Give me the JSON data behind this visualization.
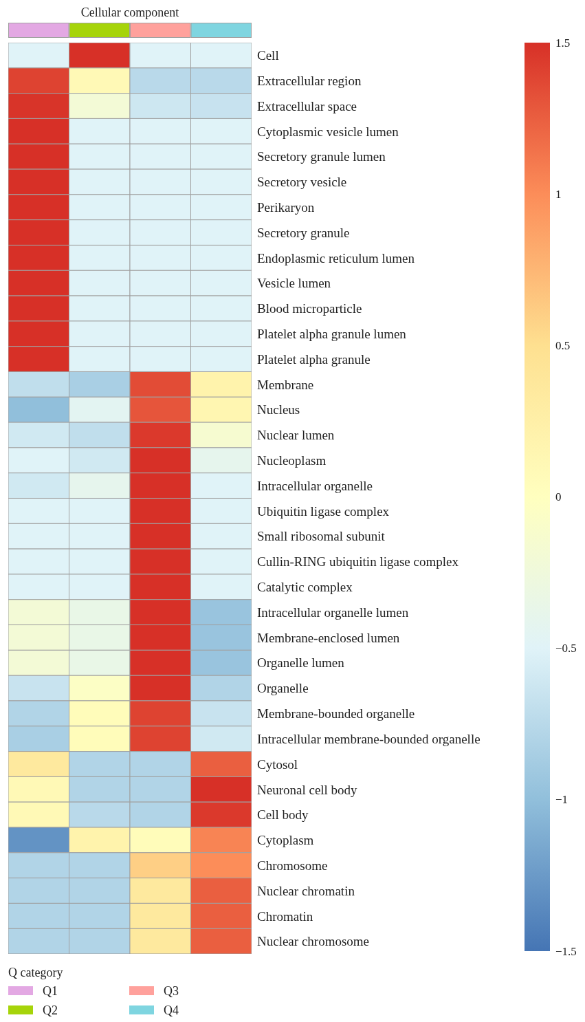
{
  "chart_data": {
    "type": "heatmap",
    "title": "Cellular component",
    "legend_title": "Q category",
    "categories": [
      null,
      null,
      null,
      null
    ],
    "annotations": [
      "Q1",
      "Q2",
      "Q3",
      "Q4"
    ],
    "colors": [
      "#e3a8e3",
      "#a6d40a",
      "#ffa19c",
      "#7fd5e0"
    ],
    "y_categories": [
      "Cell",
      "Extracellular region",
      "Extracellular space",
      "Cytoplasmic vesicle lumen",
      "Secretory granule lumen",
      "Secretory vesicle",
      "Perikaryon",
      "Secretory granule",
      "Endoplasmic reticulum lumen",
      "Vesicle lumen",
      "Blood microparticle",
      "Platelet alpha granule lumen",
      "Platelet alpha granule",
      "Membrane",
      "Nucleus",
      "Nuclear lumen",
      "Nucleoplasm",
      "Intracellular organelle",
      "Ubiquitin ligase complex",
      "Small ribosomal subunit",
      "Cullin-RING ubiquitin ligase complex",
      "Catalytic complex",
      "Intracellular organelle lumen",
      "Membrane-enclosed lumen",
      "Organelle lumen",
      "Organelle",
      "Membrane-bounded organelle",
      "Intracellular membrane-bounded organelle",
      "Cytosol",
      "Neuronal cell body",
      "Cell body",
      "Cytoplasm",
      "Chromosome",
      "Nuclear chromatin",
      "Chromatin",
      "Nuclear chromosome"
    ],
    "cells": [
      [
        -0.5,
        1.5,
        -0.5,
        -0.5
      ],
      [
        1.4,
        0.1,
        -0.75,
        -0.75
      ],
      [
        1.48,
        -0.2,
        -0.62,
        -0.66
      ],
      [
        1.5,
        -0.5,
        -0.5,
        -0.5
      ],
      [
        1.5,
        -0.5,
        -0.5,
        -0.5
      ],
      [
        1.5,
        -0.5,
        -0.5,
        -0.5
      ],
      [
        1.5,
        -0.5,
        -0.5,
        -0.5
      ],
      [
        1.5,
        -0.5,
        -0.5,
        -0.5
      ],
      [
        1.5,
        -0.5,
        -0.5,
        -0.5
      ],
      [
        1.5,
        -0.5,
        -0.5,
        -0.5
      ],
      [
        1.5,
        -0.5,
        -0.5,
        -0.5
      ],
      [
        1.5,
        -0.5,
        -0.5,
        -0.5
      ],
      [
        1.5,
        -0.5,
        -0.5,
        -0.5
      ],
      [
        -0.7,
        -0.85,
        1.35,
        0.2
      ],
      [
        -1.0,
        -0.45,
        1.3,
        0.15
      ],
      [
        -0.6,
        -0.7,
        1.45,
        -0.15
      ],
      [
        -0.5,
        -0.6,
        1.5,
        -0.4
      ],
      [
        -0.6,
        -0.4,
        1.5,
        -0.5
      ],
      [
        -0.5,
        -0.5,
        1.5,
        -0.5
      ],
      [
        -0.5,
        -0.5,
        1.5,
        -0.5
      ],
      [
        -0.5,
        -0.5,
        1.5,
        -0.5
      ],
      [
        -0.5,
        -0.5,
        1.5,
        -0.5
      ],
      [
        -0.2,
        -0.35,
        1.5,
        -0.95
      ],
      [
        -0.2,
        -0.35,
        1.5,
        -0.95
      ],
      [
        -0.2,
        -0.35,
        1.5,
        -0.95
      ],
      [
        -0.65,
        -0.05,
        1.5,
        -0.8
      ],
      [
        -0.8,
        0.05,
        1.4,
        -0.65
      ],
      [
        -0.85,
        0.05,
        1.4,
        -0.6
      ],
      [
        0.35,
        -0.8,
        -0.8,
        1.25
      ],
      [
        0.1,
        -0.8,
        -0.8,
        1.5
      ],
      [
        0.1,
        -0.75,
        -0.8,
        1.45
      ],
      [
        -1.3,
        0.2,
        0.05,
        1.05
      ],
      [
        -0.8,
        -0.8,
        0.6,
        1.0
      ],
      [
        -0.8,
        -0.8,
        0.35,
        1.25
      ],
      [
        -0.8,
        -0.8,
        0.35,
        1.25
      ],
      [
        -0.8,
        -0.8,
        0.35,
        1.25
      ]
    ],
    "clim": [
      -1.5,
      1.5
    ],
    "cticks": [
      {
        "value": -1.5,
        "label": "−1.5"
      },
      {
        "value": -1,
        "label": "−1"
      },
      {
        "value": -0.5,
        "label": "−0.5"
      },
      0,
      0.5,
      1,
      1.5
    ]
  }
}
